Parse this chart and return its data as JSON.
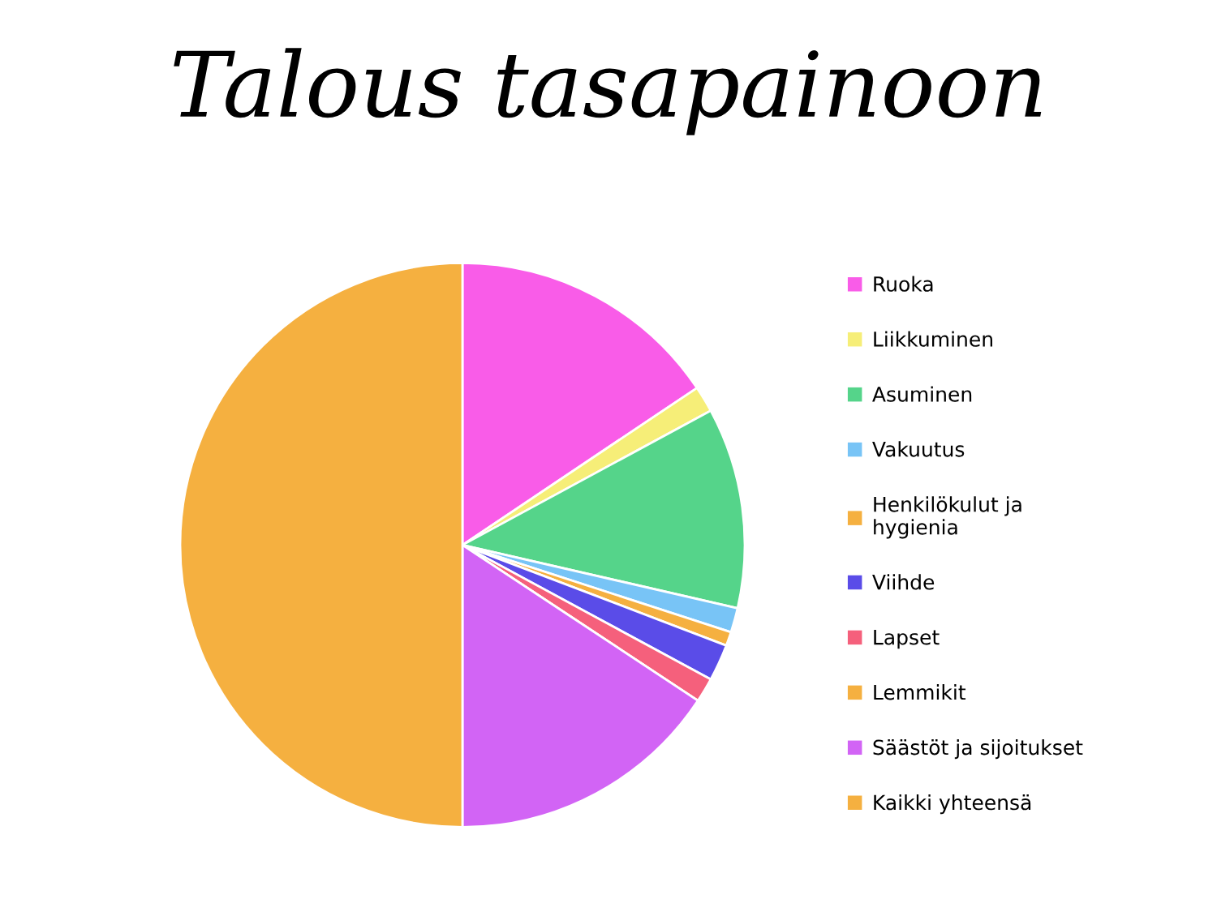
{
  "chart_data": {
    "type": "pie",
    "title": "Talous tasapainoon",
    "categories": [
      "Ruoka",
      "Liikkuminen",
      "Asuminen",
      "Vakuutus",
      "Henkilökulut ja\nhygienia",
      "Viihde",
      "Lapset",
      "Lemmikit",
      "Säästöt ja sijoitukset",
      "Kaikki yhteensä"
    ],
    "values": [
      15.6,
      1.5,
      11.5,
      1.4,
      0.8,
      2.1,
      1.4,
      0,
      15.7,
      50
    ],
    "colors": [
      "#f95ce8",
      "#f6ee78",
      "#55d48a",
      "#78c4f6",
      "#f5b040",
      "#5a4ce8",
      "#f5607c",
      "#f5b040",
      "#d264f5",
      "#f5b040"
    ],
    "legend": "right"
  }
}
